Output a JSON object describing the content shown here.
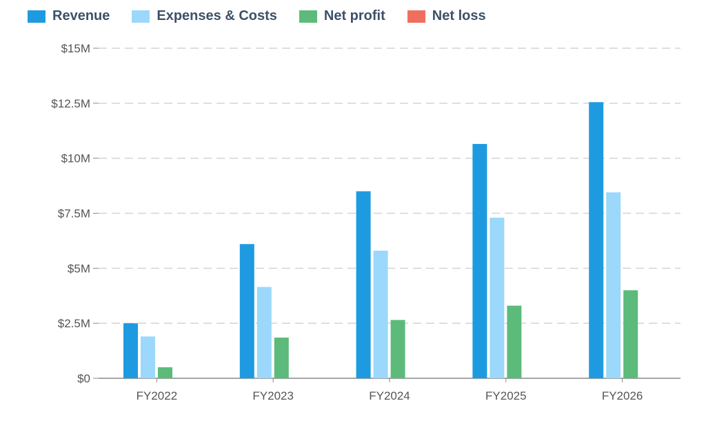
{
  "colors": {
    "revenue": "#1e9be0",
    "expenses": "#9bd8fb",
    "net_profit": "#5cbb7a",
    "net_loss": "#ef6f5e",
    "grid": "#d4d4d4",
    "axis": "#888888"
  },
  "chart_data": {
    "type": "bar",
    "title": "",
    "xlabel": "",
    "ylabel": "",
    "categories": [
      "FY2022",
      "FY2023",
      "FY2024",
      "FY2025",
      "FY2026"
    ],
    "series": [
      {
        "name": "Revenue",
        "color_key": "revenue",
        "values": [
          2.5,
          6.1,
          8.5,
          10.65,
          12.55
        ]
      },
      {
        "name": "Expenses & Costs",
        "color_key": "expenses",
        "values": [
          1.9,
          4.15,
          5.8,
          7.3,
          8.45
        ]
      },
      {
        "name": "Net profit",
        "color_key": "net_profit",
        "values": [
          0.5,
          1.85,
          2.65,
          3.3,
          4.0
        ]
      },
      {
        "name": "Net loss",
        "color_key": "net_loss",
        "values": [
          0,
          0,
          0,
          0,
          0
        ]
      }
    ],
    "ylim": [
      0,
      15
    ],
    "yticks": [
      0,
      2.5,
      5,
      7.5,
      10,
      12.5,
      15
    ],
    "ytick_labels": [
      "$0",
      "$2.5M",
      "$5M",
      "$7.5M",
      "$10M",
      "$12.5M",
      "$15M"
    ],
    "grid": true,
    "legend_position": "top-left",
    "units": "millions USD"
  }
}
